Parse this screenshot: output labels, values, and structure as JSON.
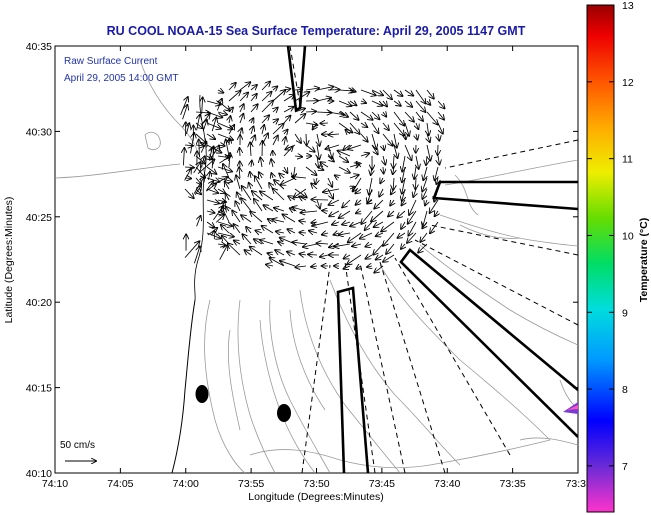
{
  "title": "RU COOL  NOAA-15  Sea Surface Temperature:  April 29, 2005 1147 GMT",
  "annotation": {
    "line1": "Raw Surface Current",
    "line2": "April 29, 2005 14:00 GMT"
  },
  "scale_label": "50 cm/s",
  "xlabel": "Longitude (Degrees:Minutes)",
  "ylabel": "Latitude (Degrees:Minutes)",
  "x_ticks": [
    "74:10",
    "74:05",
    "74:00",
    "73:55",
    "73:50",
    "73:45",
    "73:40",
    "73:35",
    "73:3"
  ],
  "y_ticks": [
    "40:35",
    "40:30",
    "40:25",
    "40:20",
    "40:15",
    "40:10"
  ],
  "colorbar": {
    "label": "Temperature (°C)",
    "ticks": [
      "13",
      "12",
      "11",
      "10",
      "9",
      "8",
      "7"
    ],
    "min": 6.4,
    "max": 13,
    "colors": [
      "#ff33cc",
      "#6a2bd6",
      "#0000ff",
      "#0099ff",
      "#00dddd",
      "#00dd66",
      "#66dd00",
      "#eeee00",
      "#ffaa00",
      "#ff5500",
      "#ee0000",
      "#990000"
    ]
  }
}
